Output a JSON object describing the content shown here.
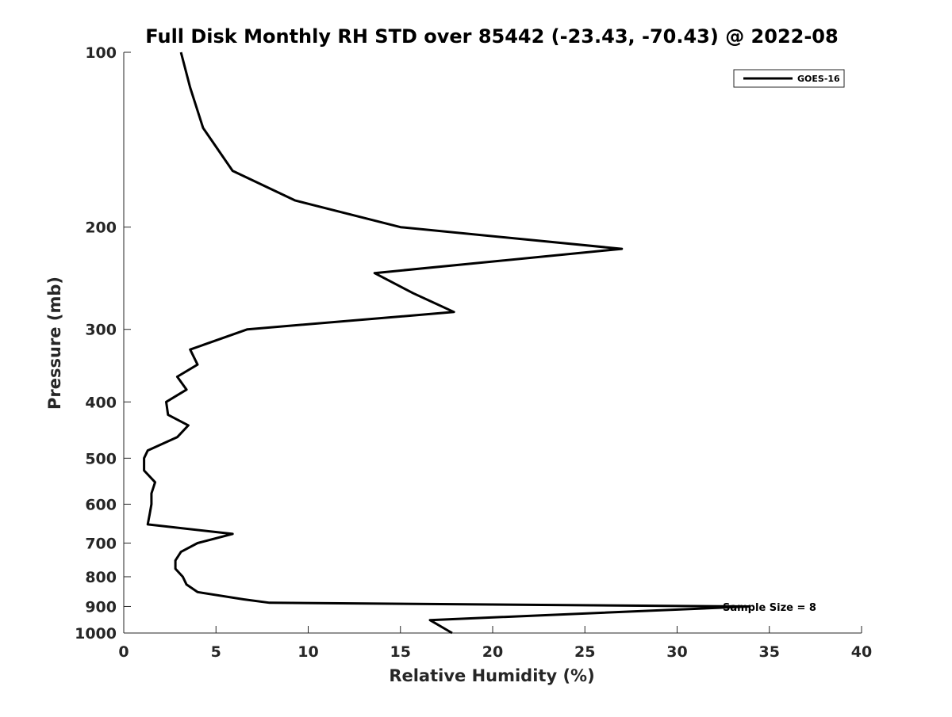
{
  "chart_data": {
    "type": "line",
    "title": "Full Disk Monthly RH STD over 85442 (-23.43, -70.43) @ 2022-08",
    "xlabel": "Relative Humidity (%)",
    "ylabel": "Pressure (mb)",
    "xlim": [
      0,
      40
    ],
    "ylim": [
      100,
      1000
    ],
    "y_scale": "log",
    "y_reversed": true,
    "x_ticks": [
      0,
      5,
      10,
      15,
      20,
      25,
      30,
      35,
      40
    ],
    "x_tick_labels": [
      "0",
      "5",
      "10",
      "15",
      "20",
      "25",
      "30",
      "35",
      "40"
    ],
    "y_ticks": [
      100,
      200,
      300,
      400,
      500,
      600,
      700,
      800,
      900,
      1000
    ],
    "y_tick_labels": [
      "100",
      "200",
      "300",
      "400",
      "500",
      "600",
      "700",
      "800",
      "900",
      "1000"
    ],
    "grid": false,
    "legend_position": "top-right",
    "annotation": "Sample Size = 8",
    "series": [
      {
        "name": "GOES-16",
        "color": "#000000",
        "points": [
          {
            "x": 3.1,
            "y": 100
          },
          {
            "x": 3.6,
            "y": 115
          },
          {
            "x": 4.3,
            "y": 135
          },
          {
            "x": 5.9,
            "y": 160
          },
          {
            "x": 9.3,
            "y": 180
          },
          {
            "x": 15.0,
            "y": 200
          },
          {
            "x": 27.0,
            "y": 218
          },
          {
            "x": 13.6,
            "y": 240
          },
          {
            "x": 15.7,
            "y": 260
          },
          {
            "x": 17.9,
            "y": 280
          },
          {
            "x": 6.7,
            "y": 300
          },
          {
            "x": 3.6,
            "y": 325
          },
          {
            "x": 4.0,
            "y": 345
          },
          {
            "x": 2.9,
            "y": 362
          },
          {
            "x": 3.4,
            "y": 381
          },
          {
            "x": 2.3,
            "y": 400
          },
          {
            "x": 2.4,
            "y": 421
          },
          {
            "x": 3.5,
            "y": 439
          },
          {
            "x": 2.9,
            "y": 460
          },
          {
            "x": 1.3,
            "y": 485
          },
          {
            "x": 1.1,
            "y": 500
          },
          {
            "x": 1.1,
            "y": 525
          },
          {
            "x": 1.7,
            "y": 550
          },
          {
            "x": 1.5,
            "y": 575
          },
          {
            "x": 1.5,
            "y": 600
          },
          {
            "x": 1.4,
            "y": 625
          },
          {
            "x": 1.3,
            "y": 650
          },
          {
            "x": 5.9,
            "y": 675
          },
          {
            "x": 4.0,
            "y": 700
          },
          {
            "x": 3.1,
            "y": 725
          },
          {
            "x": 2.8,
            "y": 750
          },
          {
            "x": 2.8,
            "y": 775
          },
          {
            "x": 3.2,
            "y": 800
          },
          {
            "x": 3.4,
            "y": 825
          },
          {
            "x": 4.0,
            "y": 850
          },
          {
            "x": 6.5,
            "y": 875
          },
          {
            "x": 7.9,
            "y": 887
          },
          {
            "x": 33.9,
            "y": 900
          },
          {
            "x": 16.6,
            "y": 950
          },
          {
            "x": 17.8,
            "y": 1000
          }
        ]
      }
    ]
  }
}
